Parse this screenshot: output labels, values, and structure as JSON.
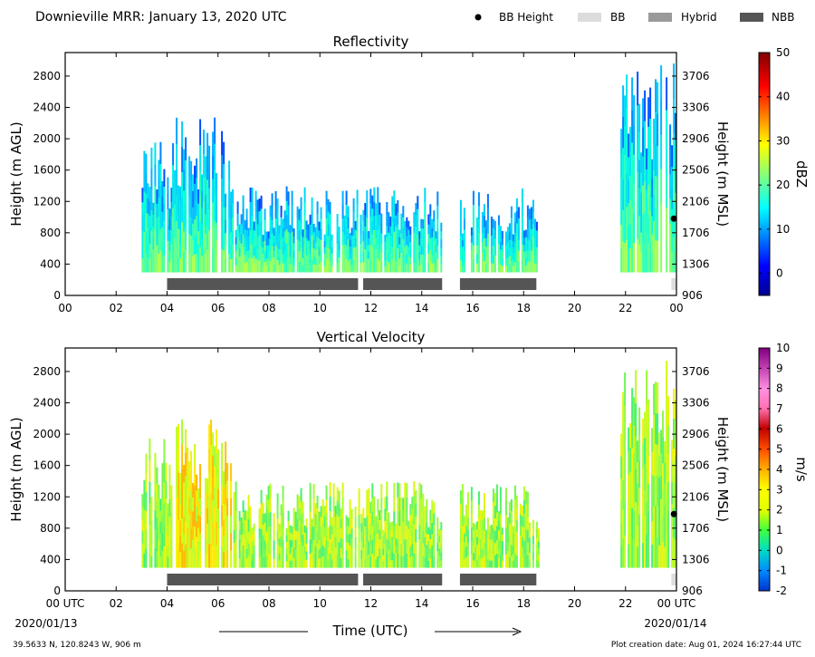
{
  "header": {
    "title": "Downieville MRR:  January 13, 2020 UTC",
    "legend": [
      {
        "label": "BB Height",
        "kind": "dot",
        "color": "#000000"
      },
      {
        "label": "BB",
        "kind": "box",
        "color": "#dcdcdc"
      },
      {
        "label": "Hybrid",
        "kind": "box",
        "color": "#9a9a9a"
      },
      {
        "label": "NBB",
        "kind": "box",
        "color": "#555555"
      }
    ]
  },
  "footer": {
    "xlabel": "Time (UTC)",
    "start_date": "2020/01/13",
    "end_date": "2020/01/14",
    "location": "39.5633 N, 120.8243 W, 906 m",
    "creation": "Plot creation date: Aug 01, 2024 16:27:44 UTC"
  },
  "chart_data": [
    {
      "type": "heatmap",
      "title": "Reflectivity",
      "ylabel": "Height (m AGL)",
      "ylabel_right": "Height (m MSL)",
      "xlim": [
        0,
        24
      ],
      "ylim": [
        0,
        3100
      ],
      "x_ticks": [
        "00",
        "02",
        "04",
        "06",
        "08",
        "10",
        "12",
        "14",
        "16",
        "18",
        "20",
        "22",
        "00"
      ],
      "y_ticks": [
        0,
        400,
        800,
        1200,
        1600,
        2000,
        2400,
        2800
      ],
      "y_ticks_right": [
        "906",
        "1306",
        "1706",
        "2106",
        "2506",
        "2906",
        "3306",
        "3706"
      ],
      "colorbar": {
        "label": "dBZ",
        "min": -5,
        "max": 50,
        "ticks": [
          0,
          10,
          20,
          30,
          40,
          50
        ]
      },
      "echo_segments": [
        {
          "x": [
            3.0,
            4.2
          ],
          "top": 2000,
          "base": 300
        },
        {
          "x": [
            4.2,
            6.6
          ],
          "top": 2300,
          "base": 300
        },
        {
          "x": [
            6.6,
            11.6
          ],
          "top": 1400,
          "base": 300
        },
        {
          "x": [
            11.6,
            14.8
          ],
          "top": 1400,
          "base": 300
        },
        {
          "x": [
            15.5,
            18.6
          ],
          "top": 1400,
          "base": 300
        },
        {
          "x": [
            21.8,
            24.0
          ],
          "top": 3000,
          "base": 300
        }
      ],
      "bb_height": [
        {
          "x": 23.9,
          "y": 980
        }
      ],
      "nbb_bars": [
        [
          4.0,
          11.5
        ],
        [
          11.7,
          14.8
        ],
        [
          15.5,
          18.5
        ]
      ],
      "bb_bars": [
        [
          23.8,
          24.0
        ]
      ]
    },
    {
      "type": "heatmap",
      "title": "Vertical Velocity",
      "ylabel": "Height (m AGL)",
      "ylabel_right": "Height (m MSL)",
      "xlim": [
        0,
        24
      ],
      "ylim": [
        0,
        3100
      ],
      "x_ticks": [
        "00 UTC",
        "02",
        "04",
        "06",
        "08",
        "10",
        "12",
        "14",
        "16",
        "18",
        "20",
        "22",
        "00 UTC"
      ],
      "y_ticks": [
        0,
        400,
        800,
        1200,
        1600,
        2000,
        2400,
        2800
      ],
      "y_ticks_right": [
        "906",
        "1306",
        "1706",
        "2106",
        "2506",
        "2906",
        "3306",
        "3706"
      ],
      "colorbar": {
        "label": "m/s",
        "min": -2,
        "max": 10,
        "ticks": [
          -2,
          -1,
          0,
          1,
          2,
          3,
          4,
          5,
          6,
          7,
          8,
          9,
          10
        ]
      },
      "echo_segments": [
        {
          "x": [
            3.0,
            4.2
          ],
          "top": 2000,
          "base": 300
        },
        {
          "x": [
            4.2,
            6.6
          ],
          "top": 2300,
          "base": 300
        },
        {
          "x": [
            6.6,
            11.6
          ],
          "top": 1400,
          "base": 300
        },
        {
          "x": [
            11.6,
            14.8
          ],
          "top": 1400,
          "base": 300
        },
        {
          "x": [
            15.5,
            18.6
          ],
          "top": 1400,
          "base": 300
        },
        {
          "x": [
            21.8,
            24.0
          ],
          "top": 3000,
          "base": 300
        }
      ],
      "bb_height": [
        {
          "x": 23.9,
          "y": 980
        }
      ],
      "nbb_bars": [
        [
          4.0,
          11.5
        ],
        [
          11.7,
          14.8
        ],
        [
          15.5,
          18.5
        ]
      ],
      "bb_bars": [
        [
          23.8,
          24.0
        ]
      ]
    }
  ]
}
